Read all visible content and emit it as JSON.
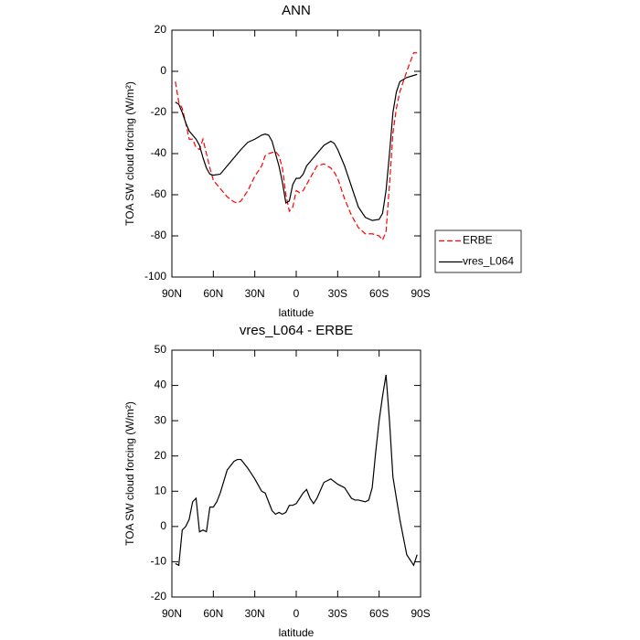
{
  "chart_data": [
    {
      "type": "line",
      "title": "ANN",
      "x_label": "latitude",
      "y_label": "TOA SW cloud forcing (W/m²)",
      "x": [
        87.5,
        85,
        82.5,
        80,
        77.5,
        75,
        72.5,
        70,
        67.5,
        65,
        62.5,
        60,
        55,
        50,
        45,
        42.5,
        40,
        35,
        30,
        25,
        22.5,
        20,
        17.5,
        15,
        12.5,
        10,
        7.5,
        5,
        2.5,
        0,
        -2.5,
        -5,
        -7.5,
        -10,
        -15,
        -20,
        -25,
        -27.5,
        -30,
        -35,
        -40,
        -45,
        -50,
        -55,
        -60,
        -62.5,
        -65,
        -67.5,
        -70,
        -72.5,
        -75,
        -80,
        -85,
        -87.5
      ],
      "series": [
        {
          "name": "ERBE",
          "color": "#ff0000",
          "line_style": "dashed",
          "values": [
            -5,
            -15,
            -18,
            -25,
            -33,
            -33,
            -37,
            -38,
            -33,
            -40,
            -47,
            -53,
            -57,
            -61,
            -63.5,
            -64,
            -63,
            -58,
            -51,
            -46,
            -41,
            -40,
            -39.5,
            -39,
            -41,
            -47,
            -60,
            -68,
            -66,
            -58,
            -59,
            -58,
            -55,
            -52,
            -46,
            -45,
            -47,
            -49,
            -52,
            -62,
            -70,
            -76,
            -79,
            -79,
            -80,
            -82,
            -78,
            -55,
            -30,
            -18,
            -10,
            0,
            9,
            9
          ]
        },
        {
          "name": "vres_L064",
          "color": "#000000",
          "line_style": "solid",
          "values": [
            -15,
            -16,
            -20,
            -25,
            -29,
            -31,
            -33,
            -36,
            -42,
            -47,
            -50,
            -50.5,
            -50,
            -46,
            -42,
            -40,
            -38,
            -34.5,
            -33,
            -31,
            -30.5,
            -31,
            -34,
            -40,
            -46,
            -54,
            -64,
            -63,
            -55,
            -52,
            -52,
            -50,
            -46,
            -44,
            -40,
            -36,
            -34,
            -35,
            -38,
            -46,
            -56,
            -66,
            -71,
            -72.5,
            -72,
            -69,
            -58,
            -40,
            -20,
            -10,
            -5,
            -3,
            -2,
            -1.5
          ]
        }
      ],
      "xlim": [
        90,
        -90
      ],
      "xticks": [
        {
          "value": 90,
          "label": "90N"
        },
        {
          "value": 60,
          "label": "60N"
        },
        {
          "value": 30,
          "label": "30N"
        },
        0,
        {
          "value": -30,
          "label": "30S"
        },
        {
          "value": -60,
          "label": "60S"
        },
        {
          "value": -90,
          "label": "90S"
        }
      ],
      "ylim": [
        -100,
        20
      ],
      "yticks": [
        -100,
        -80,
        -60,
        -40,
        -20,
        0,
        20
      ],
      "legend": "right"
    },
    {
      "type": "line",
      "title": "vres_L064 - ERBE",
      "x_label": "latitude",
      "y_label": "TOA SW cloud forcing (W/m²)",
      "x": [
        87.5,
        85,
        82.5,
        80,
        77.5,
        75,
        72.5,
        70,
        67.5,
        65,
        62.5,
        60,
        57.5,
        55,
        50,
        45,
        42.5,
        40,
        35,
        30,
        25,
        22.5,
        20,
        17.5,
        15,
        12.5,
        10,
        7.5,
        5,
        2.5,
        0,
        -2.5,
        -5,
        -7.5,
        -10,
        -12.5,
        -15,
        -20,
        -25,
        -30,
        -35,
        -40,
        -42.5,
        -45,
        -50,
        -52.5,
        -55,
        -57.5,
        -60,
        -62.5,
        -65,
        -67.5,
        -70,
        -75,
        -80,
        -85,
        -87.5
      ],
      "series": [
        {
          "color": "#000000",
          "line_style": "solid",
          "values": [
            -10.5,
            -11,
            -1,
            0,
            2,
            7,
            8,
            -1.5,
            -1,
            -1.5,
            5.5,
            5.5,
            7,
            9.5,
            16,
            18.5,
            19,
            19,
            16.5,
            13.5,
            10,
            9.5,
            7,
            4.5,
            3.5,
            4,
            3.5,
            4,
            6,
            6,
            6.5,
            8,
            9.5,
            10.5,
            8,
            6.5,
            8,
            12.5,
            13.5,
            12,
            11,
            8,
            7.5,
            7.5,
            7,
            7.5,
            11,
            21,
            30,
            37,
            43,
            30,
            14,
            2,
            -8,
            -11,
            -8
          ]
        }
      ],
      "xlim": [
        90,
        -90
      ],
      "xticks": [
        {
          "value": 90,
          "label": "90N"
        },
        {
          "value": 60,
          "label": "60N"
        },
        {
          "value": 30,
          "label": "30N"
        },
        0,
        {
          "value": -30,
          "label": "30S"
        },
        {
          "value": -60,
          "label": "60S"
        },
        {
          "value": -90,
          "label": "90S"
        }
      ],
      "ylim": [
        -20,
        50
      ],
      "yticks": [
        -20,
        -10,
        0,
        10,
        20,
        30,
        40,
        50
      ]
    }
  ]
}
